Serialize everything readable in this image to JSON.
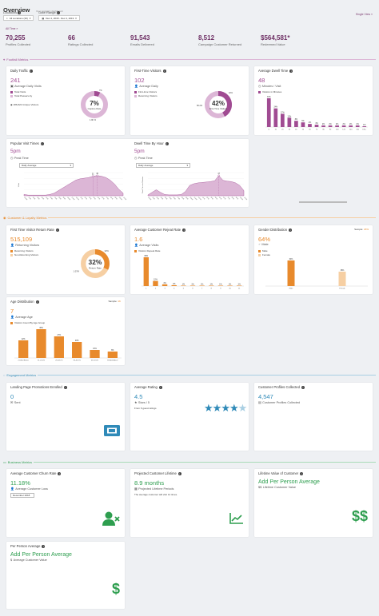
{
  "header": {
    "title": "Overview",
    "subtitle": "Your analytics dashboard"
  },
  "filters": {
    "locations_label": "Locations",
    "locations_value": "All Locations (36)",
    "date_label": "Date Range",
    "date_value": "Dec 4, 2018 - Dec 4, 2019"
  },
  "single_view": "Single View »",
  "all_time": "All Time »",
  "kpis": [
    {
      "value": "70,255",
      "label": "Profiles Collected"
    },
    {
      "value": "66",
      "label": "Ratings Collected"
    },
    {
      "value": "91,543",
      "label": "Emails Delivered"
    },
    {
      "value": "8,512",
      "label": "Campaign Customer Returned"
    },
    {
      "value": "$564,581*",
      "label": "Redeemed Value"
    }
  ],
  "sections": {
    "footfall": "Footfall Metrics",
    "customer": "Customer & Loyalty Metrics",
    "engagement": "Engagement Metrics",
    "business": "Business Metrics"
  },
  "colors": {
    "magenta": "#a04b92",
    "magenta_light": "#dcb6d6",
    "orange": "#e88a2c",
    "orange_light": "#f6cfa3",
    "blue": "#2f8ab8",
    "green": "#2e9e4f"
  },
  "daily_traffic": {
    "title": "Daily Traffic",
    "value": "241",
    "label": "Average Daily Visits",
    "legend": [
      "Total Visits",
      "Total Passers-by"
    ],
    "unique": "186,822 Unique Visitors",
    "ring_value": "7%",
    "ring_label": "Capture Rate",
    "ring_pct": 7,
    "ring_top": "7%",
    "ring_bottom": "1.9K %"
  },
  "first_time": {
    "title": "First-Time Visitors",
    "value": "102",
    "label": "Average Daily",
    "legend": [
      "First-time Visitors",
      "Returning Visitors"
    ],
    "ring_value": "42%",
    "ring_label": "First-Time Visitors",
    "ring_pct": 42,
    "ring_left": "58.2%",
    "ring_top": "42%"
  },
  "dwell": {
    "title": "Average Dwell Time",
    "value": "48",
    "label": "Minutes / Visit",
    "legend": "Visitors in Minutes",
    "chart_data": {
      "type": "bar",
      "categories": [
        "<1",
        "10",
        "20",
        "30",
        "40",
        "50",
        "60",
        "70",
        "80",
        "90",
        "100",
        "120",
        "140",
        "160",
        "180+"
      ],
      "values": [
        37,
        24,
        17,
        12,
        8,
        6,
        4,
        3,
        2,
        2,
        2,
        2,
        2,
        2,
        1
      ],
      "labels": [
        "37%",
        "24%",
        "17%",
        "12%",
        "8%",
        "6%",
        "4%",
        "3%",
        "2%",
        "2%",
        "2%",
        "2%",
        "2%",
        "2%",
        "1%"
      ]
    }
  },
  "popular": {
    "title": "Popular Visit Times",
    "value": "5pm",
    "label": "Peak Time",
    "select": "Daily Average",
    "ylabel": "Visits",
    "chart_data": {
      "type": "area",
      "x": [
        "12AM",
        "1AM",
        "2AM",
        "3AM",
        "4AM",
        "5AM",
        "6AM",
        "7AM",
        "8AM",
        "9AM",
        "10AM",
        "11AM",
        "12PM",
        "1PM",
        "2PM",
        "3PM",
        "4PM",
        "5PM",
        "6PM",
        "7PM",
        "8PM",
        "9PM",
        "10PM",
        "11PM"
      ],
      "values": [
        2,
        1,
        1,
        1,
        1,
        1,
        2,
        4,
        8,
        12,
        16,
        20,
        24,
        26,
        27,
        28,
        30,
        31,
        30,
        28,
        24,
        18,
        10,
        4
      ],
      "peak_labels": [
        "31",
        "30"
      ]
    }
  },
  "dwell_hour": {
    "title": "Dwell Time By Hour",
    "value": "5pm",
    "label": "Peak Time",
    "select": "Daily Average",
    "ylabel": "Dwell Time in Minutes",
    "chart_data": {
      "type": "area",
      "x": [
        "12AM",
        "1AM",
        "2AM",
        "3AM",
        "4AM",
        "5AM",
        "6AM",
        "7AM",
        "8AM",
        "9AM",
        "10AM",
        "11AM",
        "12PM",
        "1PM",
        "2PM",
        "3PM",
        "4PM",
        "5PM",
        "6PM",
        "7PM",
        "8PM",
        "9PM",
        "10PM",
        "11PM"
      ],
      "values": [
        2,
        8,
        14,
        8,
        3,
        2,
        2,
        2,
        3,
        10,
        24,
        28,
        30,
        31,
        32,
        33,
        35,
        47,
        36,
        34,
        33,
        30,
        24,
        12
      ],
      "peak_labels": [
        "47"
      ]
    }
  },
  "return_rate": {
    "title": "First Time Visitor Return Rate",
    "value": "515,109",
    "label": "Returning Visitors",
    "legend": [
      "Returning Visitors",
      "Non-Returning Visitors"
    ],
    "ring_value": "32%",
    "ring_label": "Return Rate",
    "ring_pct": 32,
    "ring_top": "32%",
    "ring_left": "1.07M"
  },
  "reject": {
    "title": "Average Customer Rejeat Rate",
    "value": "1.6",
    "label": "Average Visits",
    "legend": "Visitors Repeat Rate",
    "chart_data": {
      "type": "bar",
      "categories": [
        "1",
        "2",
        "3",
        "4",
        "5",
        "6",
        "7",
        "8",
        "9",
        "10",
        "11"
      ],
      "values": [
        68,
        12,
        4,
        2,
        1,
        1,
        1,
        1,
        1,
        1,
        1
      ],
      "labels": [
        "68%",
        "12%",
        "4%",
        "2%",
        "1%",
        "1%",
        "1%",
        "1%",
        "1%",
        "1%",
        "1%"
      ]
    }
  },
  "gender": {
    "title": "Gender Distribution",
    "sample_label": "Sample:",
    "sample_value": "18%",
    "value": "64%",
    "label": "Male",
    "legend": [
      "Male",
      "Female"
    ],
    "chart_data": {
      "type": "bar",
      "categories": [
        "Male",
        "Female"
      ],
      "values": [
        64,
        36
      ],
      "labels": [
        "64%",
        "36%"
      ]
    }
  },
  "age": {
    "title": "Age Distribution",
    "sample_label": "Sample:",
    "sample_value": "1K",
    "value": "7",
    "label": "Average Age",
    "legend": "Visitors Count By Age Group",
    "chart_data": {
      "type": "bar",
      "categories": [
        "21 And Below",
        "21-24 (Y)",
        "25-34 (Y)",
        "35-44 (Y)",
        "45-54 (Y)",
        "55 And Above"
      ],
      "values": [
        22,
        36,
        27,
        20,
        10,
        8
      ],
      "labels": [
        "22%",
        "36%",
        "27%",
        "20%",
        "10%",
        "8%"
      ]
    }
  },
  "promotions": {
    "title": "Landing Page Promotions Enrolled",
    "value": "0",
    "label": "Sent"
  },
  "rating": {
    "title": "Average Rating",
    "value": "4.5",
    "label": "Stars / 5",
    "note": "From 6 guest ratings",
    "stars": 4.5
  },
  "profiles": {
    "title": "Customer Profiles Collected",
    "value": "4,547",
    "label": "Customer Profiles Collected"
  },
  "churn": {
    "title": "Average Customer Churn Rate",
    "value": "11.18%",
    "label": "Average Customer Loss",
    "select": "December 2018"
  },
  "lifetime": {
    "title": "Projected Customer Lifetime",
    "value": "8.9 months",
    "label": "Projected Lifetime Periods",
    "note": "The average customer will visit 14 times."
  },
  "ltv": {
    "title": "Lifetime Value of Customer",
    "value": "Add Per Person Average",
    "label": "Lifetime Customer Value"
  },
  "ppa": {
    "title": "Per Person Average",
    "value": "Add Per Person Average",
    "label": "Average Customer Value"
  }
}
